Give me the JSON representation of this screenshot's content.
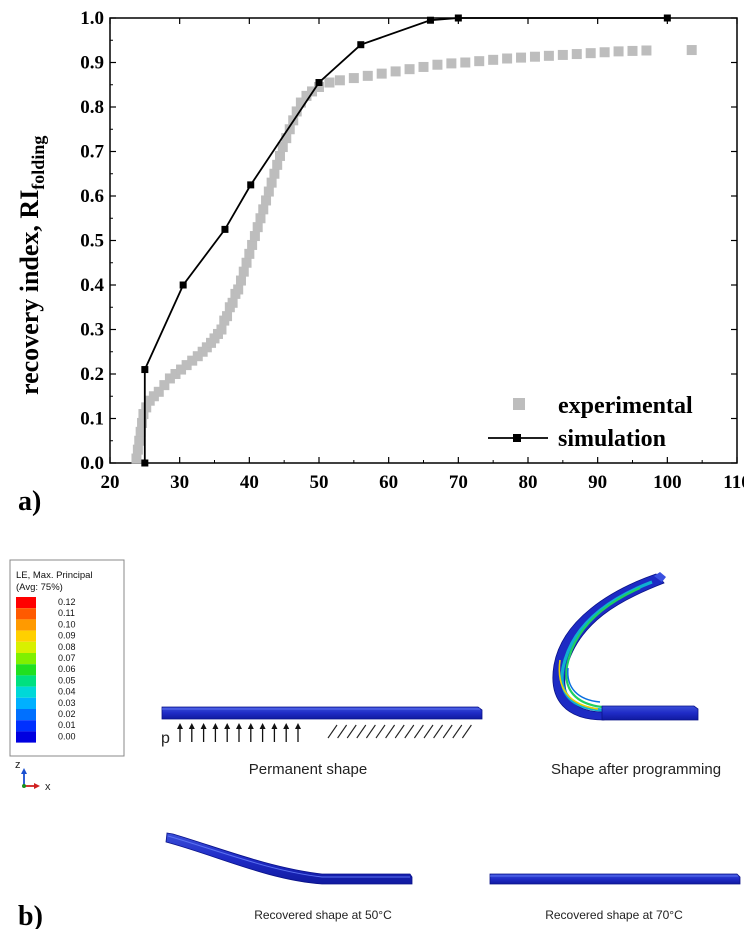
{
  "chart_data": {
    "type": "scatter",
    "panel_label": "a)",
    "ylabel": "recovery index, RI",
    "ylabel_subscript": "folding",
    "xlabel": "",
    "xlim": [
      20,
      110
    ],
    "ylim": [
      0.0,
      1.0
    ],
    "x_ticks": [
      "20",
      "30",
      "40",
      "50",
      "60",
      "70",
      "80",
      "90",
      "100",
      "110"
    ],
    "y_ticks": [
      "0.0",
      "0.1",
      "0.2",
      "0.3",
      "0.4",
      "0.5",
      "0.6",
      "0.7",
      "0.8",
      "0.9",
      "1.0"
    ],
    "legend_position": "bottom-right",
    "series": [
      {
        "name": "experimental",
        "style": "square-markers",
        "color": "#bdbdbd",
        "points": [
          [
            23.8,
            0.01
          ],
          [
            24.0,
            0.03
          ],
          [
            24.2,
            0.05
          ],
          [
            24.4,
            0.07
          ],
          [
            24.6,
            0.09
          ],
          [
            24.8,
            0.11
          ],
          [
            25.2,
            0.125
          ],
          [
            25.7,
            0.14
          ],
          [
            26.3,
            0.15
          ],
          [
            27.0,
            0.16
          ],
          [
            27.8,
            0.175
          ],
          [
            28.6,
            0.19
          ],
          [
            29.4,
            0.2
          ],
          [
            30.2,
            0.21
          ],
          [
            31.0,
            0.22
          ],
          [
            31.8,
            0.23
          ],
          [
            32.6,
            0.24
          ],
          [
            33.3,
            0.25
          ],
          [
            33.9,
            0.26
          ],
          [
            34.5,
            0.27
          ],
          [
            35.0,
            0.28
          ],
          [
            35.5,
            0.29
          ],
          [
            36.0,
            0.3
          ],
          [
            36.4,
            0.32
          ],
          [
            36.8,
            0.33
          ],
          [
            37.2,
            0.35
          ],
          [
            37.6,
            0.36
          ],
          [
            38.0,
            0.38
          ],
          [
            38.4,
            0.39
          ],
          [
            38.8,
            0.41
          ],
          [
            39.2,
            0.43
          ],
          [
            39.6,
            0.45
          ],
          [
            40.0,
            0.47
          ],
          [
            40.4,
            0.49
          ],
          [
            40.8,
            0.51
          ],
          [
            41.2,
            0.53
          ],
          [
            41.6,
            0.55
          ],
          [
            42.0,
            0.57
          ],
          [
            42.4,
            0.59
          ],
          [
            42.8,
            0.61
          ],
          [
            43.2,
            0.63
          ],
          [
            43.6,
            0.65
          ],
          [
            44.0,
            0.67
          ],
          [
            44.4,
            0.69
          ],
          [
            44.8,
            0.71
          ],
          [
            45.3,
            0.73
          ],
          [
            45.8,
            0.75
          ],
          [
            46.3,
            0.77
          ],
          [
            46.8,
            0.79
          ],
          [
            47.4,
            0.81
          ],
          [
            48.2,
            0.825
          ],
          [
            49.0,
            0.835
          ],
          [
            50.0,
            0.845
          ],
          [
            51.5,
            0.855
          ],
          [
            53.0,
            0.86
          ],
          [
            55.0,
            0.865
          ],
          [
            57.0,
            0.87
          ],
          [
            59.0,
            0.875
          ],
          [
            61.0,
            0.88
          ],
          [
            63.0,
            0.885
          ],
          [
            65.0,
            0.89
          ],
          [
            67.0,
            0.895
          ],
          [
            69.0,
            0.898
          ],
          [
            71.0,
            0.9
          ],
          [
            73.0,
            0.903
          ],
          [
            75.0,
            0.906
          ],
          [
            77.0,
            0.909
          ],
          [
            79.0,
            0.911
          ],
          [
            81.0,
            0.913
          ],
          [
            83.0,
            0.915
          ],
          [
            85.0,
            0.917
          ],
          [
            87.0,
            0.919
          ],
          [
            89.0,
            0.921
          ],
          [
            91.0,
            0.923
          ],
          [
            93.0,
            0.925
          ],
          [
            95.0,
            0.926
          ],
          [
            97.0,
            0.927
          ],
          [
            103.5,
            0.928
          ]
        ]
      },
      {
        "name": "simulation",
        "style": "line-with-square-markers",
        "color": "#000000",
        "points": [
          [
            25.0,
            0.0
          ],
          [
            25.0,
            0.21
          ],
          [
            30.5,
            0.4
          ],
          [
            36.5,
            0.525
          ],
          [
            40.2,
            0.625
          ],
          [
            50.0,
            0.855
          ],
          [
            56.0,
            0.94
          ],
          [
            66.0,
            0.995
          ],
          [
            70.0,
            1.0
          ],
          [
            100.0,
            1.0
          ]
        ]
      }
    ]
  },
  "figure_b": {
    "panel_label": "b)",
    "legend": {
      "title_line1": "LE, Max. Principal",
      "title_line2": "(Avg: 75%)",
      "values": [
        "0.12",
        "0.11",
        "0.10",
        "0.09",
        "0.08",
        "0.07",
        "0.06",
        "0.05",
        "0.04",
        "0.03",
        "0.02",
        "0.01",
        "0.00"
      ],
      "colors": [
        "#ff0000",
        "#ff5a00",
        "#ff9a00",
        "#ffd000",
        "#d8f000",
        "#80f000",
        "#20e020",
        "#00e080",
        "#00d8d8",
        "#00b0ff",
        "#0070ff",
        "#0030ff",
        "#0000e0"
      ]
    },
    "axes": {
      "z": "z",
      "x": "x"
    },
    "load_label": "p",
    "captions": {
      "permanent": "Permanent shape",
      "programmed": "Shape after programming",
      "recovered_50": "Recovered shape at 50°C",
      "recovered_70": "Recovered shape at 70°C"
    }
  }
}
